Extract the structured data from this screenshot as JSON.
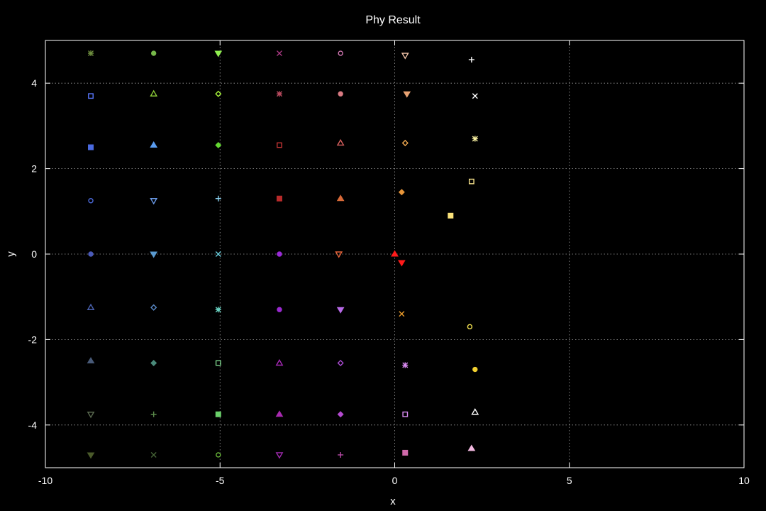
{
  "chart_data": {
    "type": "scatter",
    "title": "Phy Result",
    "xlabel": "x",
    "ylabel": "y",
    "xlim": [
      -10,
      10
    ],
    "ylim": [
      -5,
      5
    ],
    "grid": true,
    "background": "#000000",
    "foreground": "#ffffff",
    "x_ticks": [
      -10,
      -5,
      0,
      5,
      10
    ],
    "y_ticks": [
      -4,
      -2,
      0,
      2,
      4
    ],
    "points": [
      {
        "x": -8.7,
        "y": 4.7,
        "marker": "xx",
        "color": "#6f8f3f"
      },
      {
        "x": -6.9,
        "y": 4.7,
        "marker": "circle",
        "color": "#77b84a"
      },
      {
        "x": -5.05,
        "y": 4.7,
        "marker": "triangle-down-filled",
        "color": "#90ef50"
      },
      {
        "x": -3.3,
        "y": 4.7,
        "marker": "x",
        "color": "#b03a88"
      },
      {
        "x": -1.55,
        "y": 4.7,
        "marker": "circle-open",
        "color": "#d478b4"
      },
      {
        "x": 0.3,
        "y": 4.65,
        "marker": "triangle-down",
        "color": "#f2c4a8"
      },
      {
        "x": 2.2,
        "y": 4.55,
        "marker": "plus",
        "color": "#ffffff"
      },
      {
        "x": -8.7,
        "y": 3.7,
        "marker": "square",
        "color": "#5a78ff"
      },
      {
        "x": -6.9,
        "y": 3.75,
        "marker": "triangle",
        "color": "#8ccc38"
      },
      {
        "x": -5.05,
        "y": 3.75,
        "marker": "diamond",
        "color": "#a6f23a"
      },
      {
        "x": -3.3,
        "y": 3.75,
        "marker": "xx",
        "color": "#b84a5e"
      },
      {
        "x": -1.55,
        "y": 3.75,
        "marker": "circle",
        "color": "#d97a82"
      },
      {
        "x": 0.35,
        "y": 3.75,
        "marker": "triangle-down-filled",
        "color": "#e8a272"
      },
      {
        "x": 2.3,
        "y": 3.7,
        "marker": "x",
        "color": "#ffffff"
      },
      {
        "x": -8.7,
        "y": 2.5,
        "marker": "square-filled",
        "color": "#4a6ae0"
      },
      {
        "x": -6.9,
        "y": 2.55,
        "marker": "triangle-filled",
        "color": "#5a9cf0"
      },
      {
        "x": -5.05,
        "y": 2.55,
        "marker": "diamond-filled",
        "color": "#64d832"
      },
      {
        "x": -3.3,
        "y": 2.55,
        "marker": "square",
        "color": "#c23434"
      },
      {
        "x": -1.55,
        "y": 2.6,
        "marker": "triangle",
        "color": "#d8605e"
      },
      {
        "x": 0.3,
        "y": 2.6,
        "marker": "diamond",
        "color": "#f2aa50"
      },
      {
        "x": 2.3,
        "y": 2.7,
        "marker": "xx",
        "color": "#f8f0a0"
      },
      {
        "x": -8.7,
        "y": 1.25,
        "marker": "circle-open",
        "color": "#4a68d8"
      },
      {
        "x": -6.9,
        "y": 1.25,
        "marker": "triangle-down",
        "color": "#6a9ae8"
      },
      {
        "x": -5.05,
        "y": 1.3,
        "marker": "plus",
        "color": "#8ad2f0"
      },
      {
        "x": -3.3,
        "y": 1.3,
        "marker": "square-filled",
        "color": "#b82a2a"
      },
      {
        "x": -1.55,
        "y": 1.3,
        "marker": "triangle-filled",
        "color": "#d86a38"
      },
      {
        "x": 0.2,
        "y": 1.45,
        "marker": "diamond-filled",
        "color": "#e8963a"
      },
      {
        "x": 2.2,
        "y": 1.7,
        "marker": "square",
        "color": "#f5e08a"
      },
      {
        "x": 1.6,
        "y": 0.9,
        "marker": "square-filled",
        "color": "#fae27a"
      },
      {
        "x": -8.7,
        "y": 0.0,
        "marker": "circle",
        "color": "#4a5ab8"
      },
      {
        "x": -6.9,
        "y": 0.0,
        "marker": "triangle-down-filled",
        "color": "#5a9ad0"
      },
      {
        "x": -5.05,
        "y": 0.0,
        "marker": "x",
        "color": "#6ad0e0"
      },
      {
        "x": -3.3,
        "y": 0.0,
        "marker": "circle",
        "color": "#9a2ad8"
      },
      {
        "x": -1.6,
        "y": 0.0,
        "marker": "triangle-down",
        "color": "#e8643a"
      },
      {
        "x": 0.0,
        "y": 0.0,
        "marker": "triangle-filled",
        "color": "#ff1a1a"
      },
      {
        "x": 0.2,
        "y": -0.2,
        "marker": "triangle-down-filled",
        "color": "#ff1a1a"
      },
      {
        "x": -8.7,
        "y": -1.25,
        "marker": "triangle",
        "color": "#4a62b0"
      },
      {
        "x": -6.9,
        "y": -1.25,
        "marker": "diamond",
        "color": "#5a8ac8"
      },
      {
        "x": -5.05,
        "y": -1.3,
        "marker": "xx",
        "color": "#68d0c0"
      },
      {
        "x": -3.3,
        "y": -1.3,
        "marker": "circle",
        "color": "#9a2ad0"
      },
      {
        "x": -1.55,
        "y": -1.3,
        "marker": "triangle-down-filled",
        "color": "#b86ae8"
      },
      {
        "x": 0.2,
        "y": -1.4,
        "marker": "x",
        "color": "#e89a2a"
      },
      {
        "x": 2.15,
        "y": -1.7,
        "marker": "circle-open",
        "color": "#f2e050"
      },
      {
        "x": -8.7,
        "y": -2.5,
        "marker": "triangle-filled",
        "color": "#485a78"
      },
      {
        "x": -6.9,
        "y": -2.55,
        "marker": "diamond-filled",
        "color": "#4a8a7a"
      },
      {
        "x": -5.05,
        "y": -2.55,
        "marker": "square",
        "color": "#7ad08a"
      },
      {
        "x": -3.3,
        "y": -2.55,
        "marker": "triangle",
        "color": "#a82ab8"
      },
      {
        "x": -1.55,
        "y": -2.55,
        "marker": "diamond",
        "color": "#a84ad0"
      },
      {
        "x": 0.3,
        "y": -2.6,
        "marker": "xx",
        "color": "#d88af0"
      },
      {
        "x": 2.3,
        "y": -2.7,
        "marker": "circle",
        "color": "#f2d030"
      },
      {
        "x": -8.7,
        "y": -3.75,
        "marker": "triangle-down",
        "color": "#5a6a50"
      },
      {
        "x": -6.9,
        "y": -3.75,
        "marker": "plus",
        "color": "#5a8a4a"
      },
      {
        "x": -5.05,
        "y": -3.75,
        "marker": "square-filled",
        "color": "#6ad06a"
      },
      {
        "x": -3.3,
        "y": -3.75,
        "marker": "triangle-filled",
        "color": "#a82ab0"
      },
      {
        "x": -1.55,
        "y": -3.75,
        "marker": "diamond-filled",
        "color": "#b44ad0"
      },
      {
        "x": 0.3,
        "y": -3.75,
        "marker": "square",
        "color": "#d88af0"
      },
      {
        "x": 2.3,
        "y": -3.7,
        "marker": "triangle",
        "color": "#ffffff"
      },
      {
        "x": -8.7,
        "y": -4.7,
        "marker": "triangle-down-filled",
        "color": "#4a5a2a"
      },
      {
        "x": -6.9,
        "y": -4.7,
        "marker": "x",
        "color": "#4a6a3a"
      },
      {
        "x": -5.05,
        "y": -4.7,
        "marker": "circle-open",
        "color": "#6ab83a"
      },
      {
        "x": -3.3,
        "y": -4.7,
        "marker": "triangle-down",
        "color": "#a02ab0"
      },
      {
        "x": -1.55,
        "y": -4.7,
        "marker": "plus",
        "color": "#b84aa8"
      },
      {
        "x": 0.3,
        "y": -4.65,
        "marker": "square-filled",
        "color": "#d06aaa"
      },
      {
        "x": 2.2,
        "y": -4.55,
        "marker": "triangle-filled",
        "color": "#f2b8e0"
      }
    ]
  }
}
